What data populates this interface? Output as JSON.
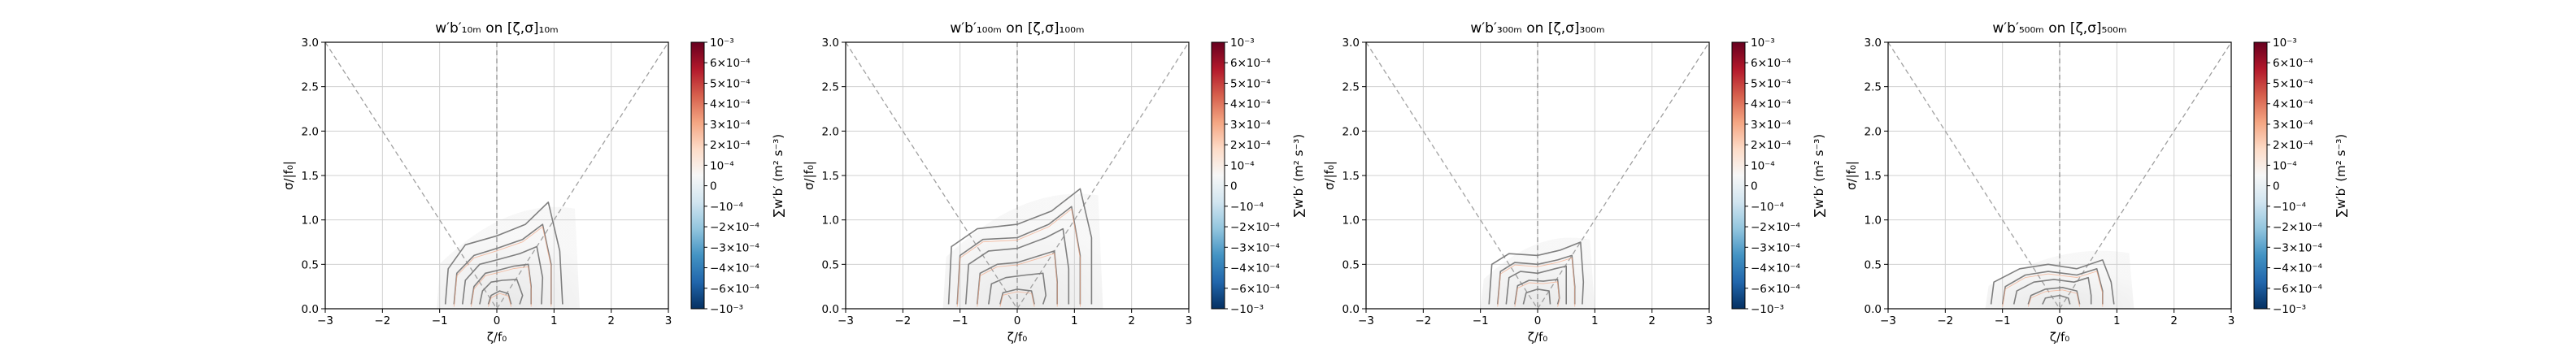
{
  "figure": {
    "colorbar_label": "∑w′b′ (m² s⁻³)",
    "colorbar_ticks": [
      "10⁻³",
      "6×10⁻⁴",
      "5×10⁻⁴",
      "4×10⁻⁴",
      "3×10⁻⁴",
      "2×10⁻⁴",
      "10⁻⁴",
      "0",
      "−10⁻⁴",
      "−2×10⁻⁴",
      "−3×10⁻⁴",
      "−4×10⁻⁴",
      "−6×10⁻⁴",
      "−10⁻³"
    ],
    "colormap": [
      "#053061",
      "#2166ac",
      "#4393c3",
      "#92c5de",
      "#d1e5f0",
      "#f7f7f7",
      "#fddbc7",
      "#f4a582",
      "#d6604d",
      "#b2182b",
      "#67001f"
    ],
    "contour_color": "#7f7f7f",
    "reference_line_color": "#a0a0a0"
  },
  "chart_data": [
    {
      "type": "heatmap",
      "title": "w′b′₁₀ₘ on [ζ,σ]₁₀ₘ",
      "xlabel": "ζ/f₀",
      "ylabel": "σ/|f₀|",
      "xlim": [
        -3,
        3
      ],
      "ylim": [
        0,
        3
      ],
      "xticks": [
        "−3",
        "−2",
        "−1",
        "0",
        "1",
        "2",
        "3"
      ],
      "yticks": [
        "0.0",
        "0.5",
        "1.0",
        "1.5",
        "2.0",
        "2.5",
        "3.0"
      ],
      "grid": true,
      "reference_lines": [
        {
          "x": [
            -3,
            0
          ],
          "y": [
            3,
            0
          ]
        },
        {
          "x": [
            0,
            3
          ],
          "y": [
            0,
            3
          ]
        }
      ],
      "vertical_line_x": 0,
      "shading_extent": {
        "x": [
          -1.05,
          1.45
        ],
        "y": [
          0,
          1.2
        ]
      },
      "contours": [
        [
          [
            -0.9,
            0.05
          ],
          [
            -0.85,
            0.45
          ],
          [
            -0.55,
            0.72
          ],
          [
            0,
            0.82
          ],
          [
            0.5,
            0.95
          ],
          [
            0.9,
            1.2
          ],
          [
            1.1,
            0.65
          ],
          [
            1.15,
            0.05
          ]
        ],
        [
          [
            -0.75,
            0.05
          ],
          [
            -0.7,
            0.4
          ],
          [
            -0.4,
            0.6
          ],
          [
            0,
            0.68
          ],
          [
            0.45,
            0.78
          ],
          [
            0.8,
            0.95
          ],
          [
            0.95,
            0.5
          ],
          [
            0.95,
            0.05
          ]
        ],
        [
          [
            -0.6,
            0.05
          ],
          [
            -0.55,
            0.32
          ],
          [
            -0.3,
            0.5
          ],
          [
            0,
            0.55
          ],
          [
            0.4,
            0.62
          ],
          [
            0.7,
            0.7
          ],
          [
            0.8,
            0.35
          ],
          [
            0.78,
            0.05
          ]
        ],
        [
          [
            -0.45,
            0.05
          ],
          [
            -0.4,
            0.25
          ],
          [
            -0.2,
            0.4
          ],
          [
            0,
            0.43
          ],
          [
            0.3,
            0.48
          ],
          [
            0.55,
            0.5
          ],
          [
            0.6,
            0.25
          ],
          [
            0.6,
            0.05
          ]
        ],
        [
          [
            -0.3,
            0.05
          ],
          [
            -0.25,
            0.2
          ],
          [
            -0.1,
            0.3
          ],
          [
            0.1,
            0.32
          ],
          [
            0.35,
            0.33
          ],
          [
            0.45,
            0.15
          ],
          [
            0.4,
            0.05
          ]
        ],
        [
          [
            -0.15,
            0.05
          ],
          [
            -0.1,
            0.15
          ],
          [
            0.05,
            0.2
          ],
          [
            0.2,
            0.17
          ],
          [
            0.25,
            0.05
          ]
        ]
      ]
    },
    {
      "type": "heatmap",
      "title": "w′b′₁₀₀ₘ on [ζ,σ]₁₀₀ₘ",
      "xlabel": "ζ/f₀",
      "ylabel": "σ/|f₀|",
      "xlim": [
        -3,
        3
      ],
      "ylim": [
        0,
        3
      ],
      "xticks": [
        "−3",
        "−2",
        "−1",
        "0",
        "1",
        "2",
        "3"
      ],
      "yticks": [
        "0.0",
        "0.5",
        "1.0",
        "1.5",
        "2.0",
        "2.5",
        "3.0"
      ],
      "grid": true,
      "reference_lines": [
        {
          "x": [
            -3,
            0
          ],
          "y": [
            3,
            0
          ]
        },
        {
          "x": [
            0,
            3
          ],
          "y": [
            0,
            3
          ]
        }
      ],
      "vertical_line_x": 0,
      "shading_extent": {
        "x": [
          -1.3,
          1.5
        ],
        "y": [
          0,
          1.35
        ]
      },
      "contours": [
        [
          [
            -1.2,
            0.05
          ],
          [
            -1.15,
            0.7
          ],
          [
            -0.7,
            0.9
          ],
          [
            0,
            0.95
          ],
          [
            0.6,
            1.1
          ],
          [
            1.1,
            1.35
          ],
          [
            1.3,
            0.8
          ],
          [
            1.3,
            0.05
          ]
        ],
        [
          [
            -1.05,
            0.05
          ],
          [
            -1.0,
            0.6
          ],
          [
            -0.6,
            0.78
          ],
          [
            0,
            0.8
          ],
          [
            0.55,
            0.95
          ],
          [
            0.95,
            1.15
          ],
          [
            1.1,
            0.6
          ],
          [
            1.1,
            0.05
          ]
        ],
        [
          [
            -0.9,
            0.05
          ],
          [
            -0.85,
            0.5
          ],
          [
            -0.5,
            0.65
          ],
          [
            0,
            0.68
          ],
          [
            0.5,
            0.8
          ],
          [
            0.8,
            0.9
          ],
          [
            0.9,
            0.45
          ],
          [
            0.9,
            0.05
          ]
        ],
        [
          [
            -0.7,
            0.05
          ],
          [
            -0.65,
            0.4
          ],
          [
            -0.35,
            0.5
          ],
          [
            0,
            0.52
          ],
          [
            0.4,
            0.6
          ],
          [
            0.65,
            0.65
          ],
          [
            0.7,
            0.3
          ],
          [
            0.7,
            0.05
          ]
        ],
        [
          [
            -0.5,
            0.05
          ],
          [
            -0.45,
            0.28
          ],
          [
            -0.2,
            0.35
          ],
          [
            0.15,
            0.38
          ],
          [
            0.45,
            0.4
          ],
          [
            0.5,
            0.15
          ],
          [
            0.45,
            0.05
          ]
        ],
        [
          [
            -0.3,
            0.05
          ],
          [
            -0.25,
            0.18
          ],
          [
            0,
            0.22
          ],
          [
            0.25,
            0.2
          ],
          [
            0.3,
            0.05
          ]
        ]
      ]
    },
    {
      "type": "heatmap",
      "title": "w′b′₃₀₀ₘ on [ζ,σ]₃₀₀ₘ",
      "xlabel": "ζ/f₀",
      "ylabel": "σ/|f₀|",
      "xlim": [
        -3,
        3
      ],
      "ylim": [
        0,
        3
      ],
      "xticks": [
        "−3",
        "−2",
        "−1",
        "0",
        "1",
        "2",
        "3"
      ],
      "yticks": [
        "0.0",
        "0.5",
        "1.0",
        "1.5",
        "2.0",
        "2.5",
        "3.0"
      ],
      "grid": true,
      "reference_lines": [
        {
          "x": [
            -3,
            0
          ],
          "y": [
            3,
            0
          ]
        },
        {
          "x": [
            0,
            3
          ],
          "y": [
            0,
            3
          ]
        }
      ],
      "vertical_line_x": 0,
      "shading_extent": {
        "x": [
          -1.0,
          1.0
        ],
        "y": [
          0,
          0.85
        ]
      },
      "contours": [
        [
          [
            -0.85,
            0.05
          ],
          [
            -0.8,
            0.5
          ],
          [
            -0.5,
            0.62
          ],
          [
            0,
            0.6
          ],
          [
            0.4,
            0.66
          ],
          [
            0.75,
            0.75
          ],
          [
            0.8,
            0.3
          ],
          [
            0.78,
            0.05
          ]
        ],
        [
          [
            -0.7,
            0.05
          ],
          [
            -0.65,
            0.42
          ],
          [
            -0.4,
            0.52
          ],
          [
            0,
            0.5
          ],
          [
            0.35,
            0.55
          ],
          [
            0.6,
            0.6
          ],
          [
            0.65,
            0.25
          ],
          [
            0.65,
            0.05
          ]
        ],
        [
          [
            -0.55,
            0.05
          ],
          [
            -0.5,
            0.35
          ],
          [
            -0.3,
            0.42
          ],
          [
            0,
            0.4
          ],
          [
            0.3,
            0.45
          ],
          [
            0.5,
            0.48
          ],
          [
            0.5,
            0.2
          ],
          [
            0.5,
            0.05
          ]
        ],
        [
          [
            -0.4,
            0.05
          ],
          [
            -0.35,
            0.26
          ],
          [
            -0.15,
            0.32
          ],
          [
            0.1,
            0.31
          ],
          [
            0.35,
            0.33
          ],
          [
            0.38,
            0.12
          ],
          [
            0.35,
            0.05
          ]
        ],
        [
          [
            -0.25,
            0.05
          ],
          [
            -0.2,
            0.18
          ],
          [
            0,
            0.22
          ],
          [
            0.2,
            0.2
          ],
          [
            0.22,
            0.05
          ]
        ]
      ]
    },
    {
      "type": "heatmap",
      "title": "w′b′₅₀₀ₘ on [ζ,σ]₅₀₀ₘ",
      "xlabel": "ζ/f₀",
      "ylabel": "σ/|f₀|",
      "xlim": [
        -3,
        3
      ],
      "ylim": [
        0,
        3
      ],
      "xticks": [
        "−3",
        "−2",
        "−1",
        "0",
        "1",
        "2",
        "3"
      ],
      "yticks": [
        "0.0",
        "0.5",
        "1.0",
        "1.5",
        "2.0",
        "2.5",
        "3.0"
      ],
      "grid": true,
      "reference_lines": [
        {
          "x": [
            -3,
            0
          ],
          "y": [
            3,
            0
          ]
        },
        {
          "x": [
            0,
            3
          ],
          "y": [
            0,
            3
          ]
        }
      ],
      "vertical_line_x": 0,
      "shading_extent": {
        "x": [
          -1.3,
          1.3
        ],
        "y": [
          0,
          0.7
        ]
      },
      "contours": [
        [
          [
            -1.2,
            0.05
          ],
          [
            -1.15,
            0.3
          ],
          [
            -0.7,
            0.45
          ],
          [
            -0.2,
            0.5
          ],
          [
            0.3,
            0.45
          ],
          [
            0.75,
            0.55
          ],
          [
            0.9,
            0.3
          ],
          [
            0.95,
            0.05
          ]
        ],
        [
          [
            -1.0,
            0.05
          ],
          [
            -0.95,
            0.25
          ],
          [
            -0.6,
            0.38
          ],
          [
            -0.2,
            0.42
          ],
          [
            0.3,
            0.38
          ],
          [
            0.65,
            0.45
          ],
          [
            0.75,
            0.2
          ],
          [
            0.75,
            0.05
          ]
        ],
        [
          [
            -0.8,
            0.05
          ],
          [
            -0.75,
            0.2
          ],
          [
            -0.45,
            0.3
          ],
          [
            -0.1,
            0.33
          ],
          [
            0.25,
            0.3
          ],
          [
            0.5,
            0.35
          ],
          [
            0.55,
            0.15
          ],
          [
            0.55,
            0.05
          ]
        ],
        [
          [
            -0.55,
            0.05
          ],
          [
            -0.5,
            0.15
          ],
          [
            -0.25,
            0.22
          ],
          [
            0.05,
            0.24
          ],
          [
            0.3,
            0.2
          ],
          [
            0.35,
            0.05
          ]
        ],
        [
          [
            -0.3,
            0.05
          ],
          [
            -0.25,
            0.12
          ],
          [
            0,
            0.15
          ],
          [
            0.15,
            0.12
          ],
          [
            0.18,
            0.05
          ]
        ]
      ]
    }
  ]
}
